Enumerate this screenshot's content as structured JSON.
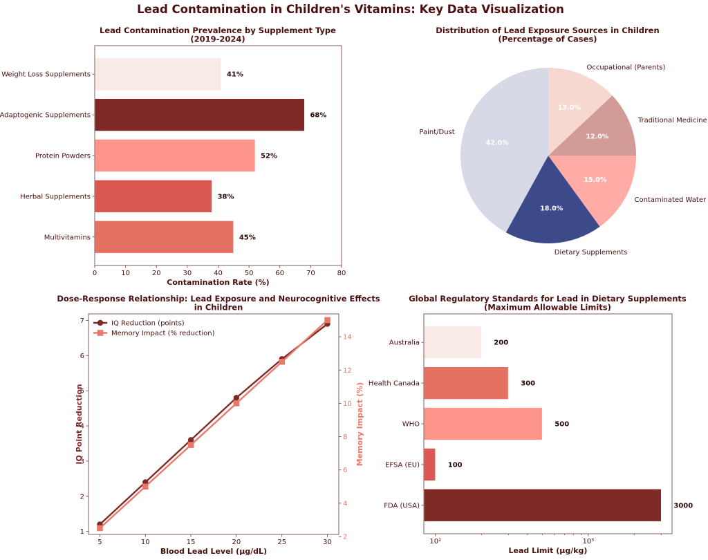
{
  "figure": {
    "suptitle": "Lead Contamination in Children's Vitamins: Key Data Visualization"
  },
  "chart_data": [
    {
      "id": "prevalence",
      "type": "bar",
      "orientation": "horizontal",
      "title": "Lead Contamination Prevalence by Supplement Type\n(2019-2024)",
      "title_lines": [
        "Lead Contamination Prevalence by Supplement Type",
        "(2019-2024)"
      ],
      "categories": [
        "Multivitamins",
        "Herbal Supplements",
        "Protein Powders",
        "Adaptogenic Supplements",
        "Weight Loss Supplements"
      ],
      "values": [
        45,
        38,
        52,
        68,
        41
      ],
      "value_labels": [
        "45%",
        "38%",
        "52%",
        "68%",
        "41%"
      ],
      "colors": [
        "#e57163",
        "#db5752",
        "#fd958b",
        "#7f2a27",
        "#f8ebe7"
      ],
      "xlabel": "Contamination Rate (%)",
      "ylabel": "",
      "xlim": [
        0,
        80
      ],
      "xticks": [
        0,
        10,
        20,
        30,
        40,
        50,
        60,
        70,
        80
      ],
      "grid": false
    },
    {
      "id": "sources",
      "type": "pie",
      "title": "Distribution of Lead Exposure Sources in Children\n(Percentage of Cases)",
      "title_lines": [
        "Distribution of Lead Exposure Sources in Children",
        "(Percentage of Cases)"
      ],
      "labels": [
        "Paint/Dust",
        "Dietary Supplements",
        "Contaminated Water",
        "Traditional Medicine",
        "Occupational (Parents)"
      ],
      "values": [
        42,
        18,
        15,
        12,
        13
      ],
      "pct_labels": [
        "42.0%",
        "18.0%",
        "15.0%",
        "12.0%",
        "13.0%"
      ],
      "colors": [
        "#d8d9e6",
        "#3d4a89",
        "#ffaba6",
        "#d29b97",
        "#f6d8d1"
      ],
      "start_angle_deg": 90,
      "direction": "counterclockwise"
    },
    {
      "id": "dose_response",
      "type": "line",
      "title": "Dose-Response Relationship: Lead Exposure and Neurocognitive Effects\nin Children",
      "title_lines": [
        "Dose-Response Relationship: Lead Exposure and Neurocognitive Effects",
        "in Children"
      ],
      "x": [
        5,
        10,
        15,
        20,
        25,
        30
      ],
      "series": [
        {
          "name": "IQ Reduction (points)",
          "axis": "left",
          "marker": "circle",
          "color": "#7f2a27",
          "values": [
            1.2,
            2.4,
            3.6,
            4.8,
            5.9,
            6.9
          ]
        },
        {
          "name": "Memory Impact (% reduction)",
          "axis": "right",
          "marker": "square",
          "color": "#e8796a",
          "values": [
            2.5,
            5.0,
            7.5,
            10.0,
            12.5,
            15.0
          ]
        }
      ],
      "xlabel": "Blood Lead Level (µg/dL)",
      "ylabel": "IQ Point Reduction",
      "ylabel_right": "Memory Impact (%)",
      "xlim": [
        3.75,
        31.25
      ],
      "ylim": [
        0.915,
        7.185
      ],
      "ylim_right": [
        2.125,
        15.375
      ],
      "xticks": [
        5,
        10,
        15,
        20,
        25,
        30
      ],
      "yticks": [
        1,
        2,
        3,
        4,
        5,
        6,
        7
      ],
      "yticks_right": [
        2,
        4,
        6,
        8,
        10,
        12,
        14
      ],
      "legend_position": "upper-left",
      "grid": false
    },
    {
      "id": "regulatory",
      "type": "bar",
      "orientation": "horizontal",
      "title": "Global Regulatory Standards for Lead in Dietary Supplements\n(Maximum Allowable Limits)",
      "title_lines": [
        "Global Regulatory Standards for Lead in Dietary Supplements",
        "(Maximum Allowable Limits)"
      ],
      "categories": [
        "FDA (USA)",
        "EFSA (EU)",
        "WHO",
        "Health Canada",
        "Australia"
      ],
      "values": [
        3000,
        100,
        500,
        300,
        200
      ],
      "value_labels": [
        "3000",
        "100",
        "500",
        "300",
        "200"
      ],
      "colors": [
        "#7f2a27",
        "#db5752",
        "#fd958b",
        "#e57163",
        "#f8ebe7"
      ],
      "xlabel": "Lead Limit (µg/kg)",
      "xscale": "log",
      "xlim": [
        84,
        3530
      ],
      "xticks": [
        100,
        1000
      ],
      "xtick_labels": [
        "10²",
        "10³"
      ],
      "minor_xticks": [
        200,
        300,
        400,
        500,
        600,
        700,
        800,
        900,
        2000,
        3000
      ],
      "grid": false
    }
  ]
}
